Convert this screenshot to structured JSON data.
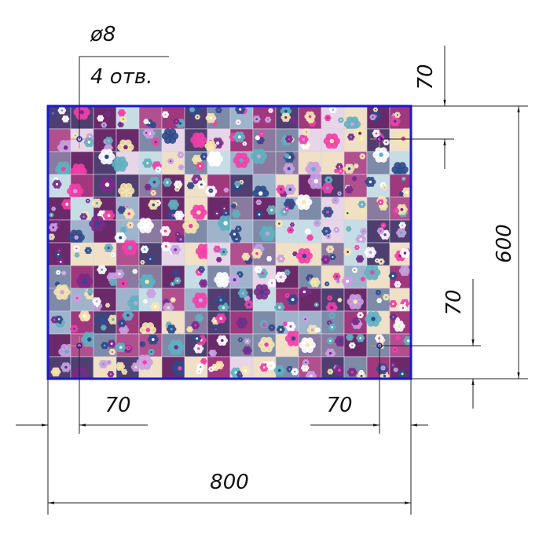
{
  "hole_note": {
    "diameter": "ø8",
    "count": "4 отв."
  },
  "dimensions": {
    "width": "800",
    "height": "600",
    "hole_offset_top": "70",
    "hole_offset_bottom": "70",
    "hole_offset_left": "70",
    "hole_offset_right": "70"
  },
  "colors": {
    "panel_border": "#1a1ad0",
    "tile_palette": [
      "#8a7aa0",
      "#6a2a6a",
      "#9fb3cc",
      "#c6dde6",
      "#e6d6e8",
      "#4e3f70",
      "#b0508e",
      "#efe0c6",
      "#7d8aa8",
      "#a0387e"
    ],
    "flower_palette": [
      "#f23fa8",
      "#ffffff",
      "#c9a0e0",
      "#2e4a8a",
      "#5fb0c0",
      "#f5e6b0",
      "#7a2a8a"
    ]
  }
}
